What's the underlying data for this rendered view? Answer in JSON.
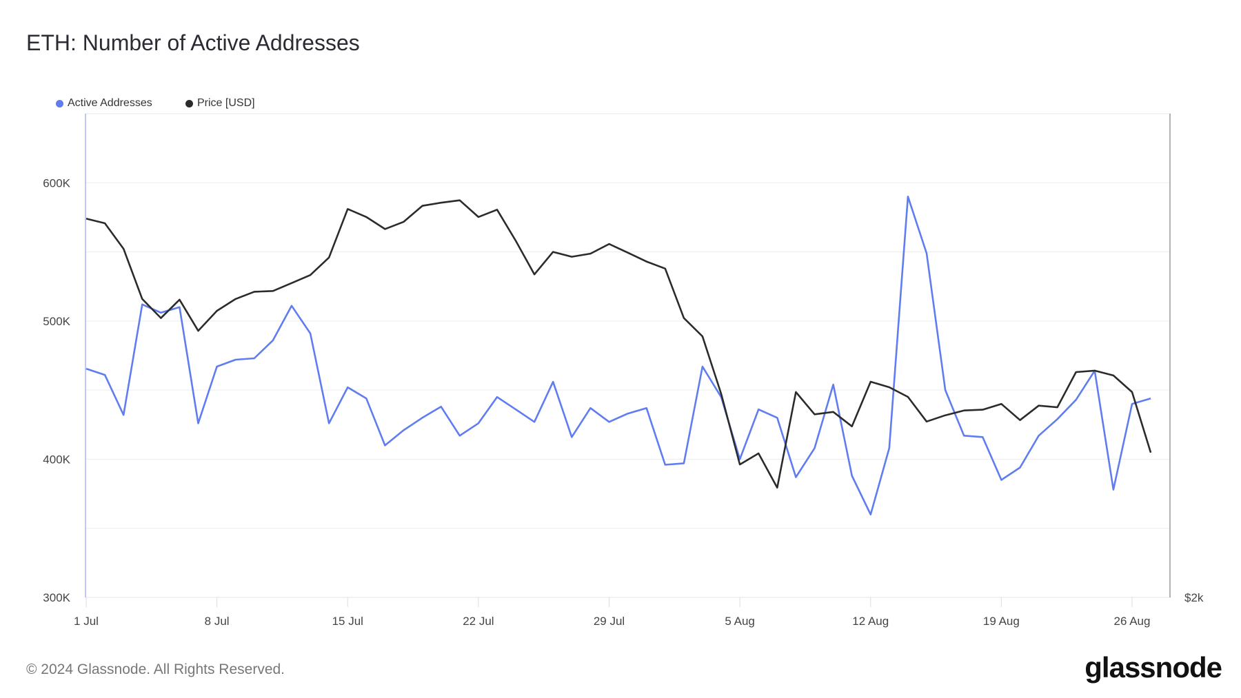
{
  "chart_data": {
    "type": "line",
    "title": "ETH: Number of Active Addresses",
    "x_start_date": "1 Jul",
    "x_tick_labels": [
      "1 Jul",
      "8 Jul",
      "15 Jul",
      "22 Jul",
      "29 Jul",
      "5 Aug",
      "12 Aug",
      "19 Aug",
      "26 Aug"
    ],
    "x_tick_days": [
      0,
      7,
      14,
      21,
      28,
      35,
      42,
      49,
      56
    ],
    "ylim": [
      300000,
      650000
    ],
    "y_tick_labels": [
      "300K",
      "400K",
      "500K",
      "600K"
    ],
    "y_tick_values": [
      300000,
      400000,
      500000,
      600000
    ],
    "y_right_tick_label": "$2k",
    "y_right_lim": [
      1885,
      3890
    ],
    "grid": true,
    "legend_position": "top-left",
    "series": [
      {
        "name": "Active Addresses",
        "color": "#5f7cf0",
        "axis": "left",
        "values": [
          465500,
          461000,
          432000,
          512000,
          506000,
          510000,
          426000,
          467000,
          472000,
          473000,
          486000,
          511000,
          491000,
          426000,
          452000,
          444000,
          410000,
          421000,
          430000,
          438000,
          417000,
          426000,
          445000,
          436000,
          427000,
          456000,
          416000,
          437000,
          427000,
          433000,
          437000,
          396000,
          397000,
          467000,
          445000,
          400000,
          436000,
          430000,
          387000,
          408000,
          454000,
          388000,
          360000,
          408000,
          590000,
          549000,
          450000,
          417000,
          416000,
          385000,
          394000,
          417000,
          429000,
          443000,
          464000,
          378000,
          440000,
          444000
        ]
      },
      {
        "name": "Price [USD]",
        "color": "#2b2b2b",
        "axis": "right",
        "values": [
          3455,
          3436,
          3330,
          3122,
          3043,
          3119,
          2990,
          3073,
          3122,
          3152,
          3155,
          3188,
          3221,
          3294,
          3495,
          3462,
          3412,
          3442,
          3508,
          3521,
          3531,
          3462,
          3492,
          3363,
          3224,
          3317,
          3297,
          3310,
          3350,
          3314,
          3277,
          3248,
          3043,
          2967,
          2729,
          2436,
          2482,
          2340,
          2736,
          2644,
          2654,
          2594,
          2779,
          2756,
          2716,
          2614,
          2640,
          2660,
          2663,
          2687,
          2620,
          2680,
          2673,
          2819,
          2825,
          2805,
          2736,
          2485
        ]
      }
    ]
  },
  "footer": "© 2024 Glassnode. All Rights Reserved.",
  "logo": "glassnode"
}
